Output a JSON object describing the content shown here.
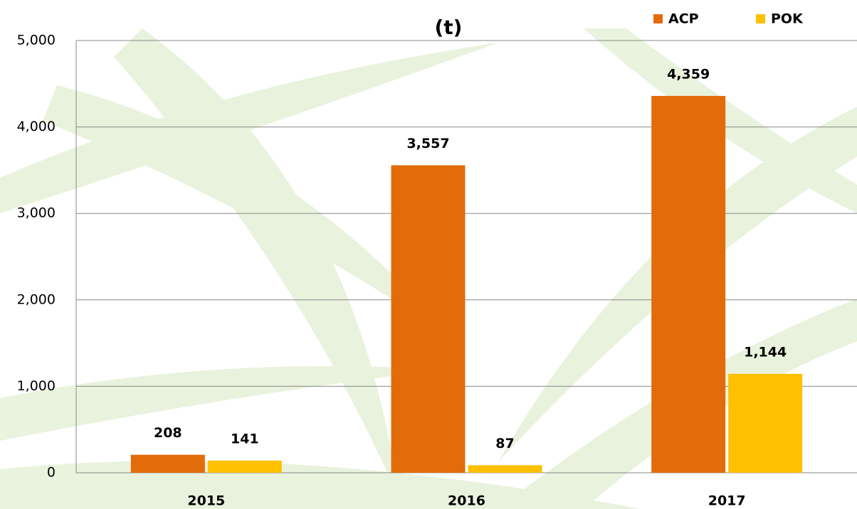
{
  "chart_data": {
    "type": "bar",
    "title": "(t)",
    "categories": [
      "2015",
      "2016",
      "2017"
    ],
    "series": [
      {
        "name": "ACP",
        "color": "#e36c0a",
        "values": [
          208,
          3557,
          4359
        ],
        "value_labels": [
          "208",
          "3,557",
          "4,359"
        ]
      },
      {
        "name": "POK",
        "color": "#ffc000",
        "values": [
          141,
          87,
          1144
        ],
        "value_labels": [
          "141",
          "87",
          "1,144"
        ]
      }
    ],
    "ylim": [
      0,
      5000
    ],
    "yticks": [
      0,
      {
        "value": 1000,
        "label": "1,000"
      },
      {
        "value": 2000,
        "label": "2,000"
      },
      {
        "value": 3000,
        "label": "3,000"
      },
      {
        "value": 4000,
        "label": "4,000"
      },
      {
        "value": 5000,
        "label": "5,000"
      }
    ],
    "grid": true,
    "legend": "top-right"
  }
}
